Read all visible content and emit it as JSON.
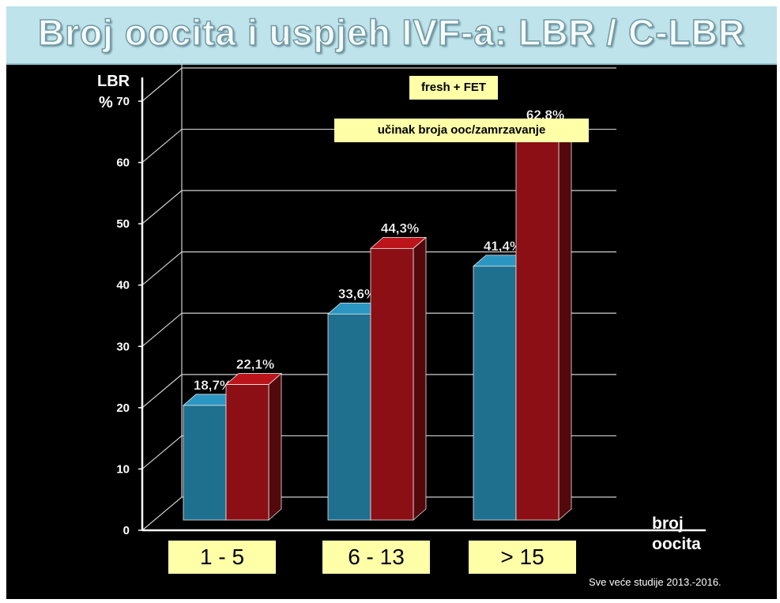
{
  "slide": {
    "title": "Broj oocita i uspjeh IVF-a: LBR / C-LBR",
    "notes": [
      "fresh + FET",
      "učinak broja ooc/zamrzavanje"
    ],
    "footnote": "Sve veće studije 2013.-2016."
  },
  "colors": {
    "background": "#000000",
    "title_bar": "#bfe3ea",
    "note_box": "#ffffa8",
    "series_lbr": "#1f6f8f",
    "series_clbr": "#8b0f14"
  },
  "chart_data": {
    "type": "bar",
    "style": "3d-clustered",
    "ylabel": "LBR",
    "yunit": "%",
    "xlabel_lines": [
      "broj",
      "oocita"
    ],
    "ylim": [
      0,
      70
    ],
    "yticks": [
      0,
      10,
      20,
      30,
      40,
      50,
      60,
      70
    ],
    "grid": true,
    "categories": [
      "1 - 5",
      "6 - 13",
      "> 15"
    ],
    "series": [
      {
        "values": [
          18.7,
          33.6,
          41.4
        ],
        "labels": [
          "18,7%",
          "33,6%",
          "41,4%"
        ]
      },
      {
        "values": [
          22.1,
          44.3,
          62.8
        ],
        "labels": [
          "22,1%",
          "44,3%",
          "62,8%"
        ]
      }
    ]
  }
}
